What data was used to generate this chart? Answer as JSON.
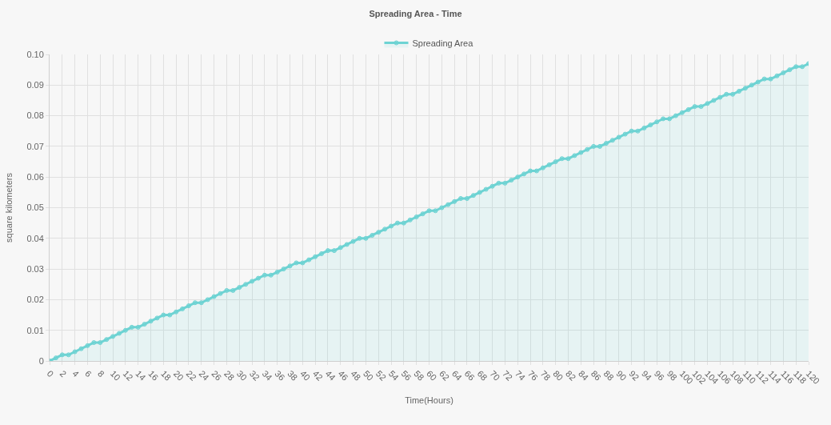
{
  "chart_data": {
    "type": "area",
    "title": "Spreading Area - Time",
    "xlabel": "Time(Hours)",
    "ylabel": "square kilometers",
    "x": [
      0,
      1,
      2,
      3,
      4,
      5,
      6,
      7,
      8,
      9,
      10,
      11,
      12,
      13,
      14,
      15,
      16,
      17,
      18,
      19,
      20,
      21,
      22,
      23,
      24,
      25,
      26,
      27,
      28,
      29,
      30,
      31,
      32,
      33,
      34,
      35,
      36,
      37,
      38,
      39,
      40,
      41,
      42,
      43,
      44,
      45,
      46,
      47,
      48,
      49,
      50,
      51,
      52,
      53,
      54,
      55,
      56,
      57,
      58,
      59,
      60,
      61,
      62,
      63,
      64,
      65,
      66,
      67,
      68,
      69,
      70,
      71,
      72,
      73,
      74,
      75,
      76,
      77,
      78,
      79,
      80,
      81,
      82,
      83,
      84,
      85,
      86,
      87,
      88,
      89,
      90,
      91,
      92,
      93,
      94,
      95,
      96,
      97,
      98,
      99,
      100,
      101,
      102,
      103,
      104,
      105,
      106,
      107,
      108,
      109,
      110,
      111,
      112,
      113,
      114,
      115,
      116,
      117,
      118,
      119,
      120
    ],
    "series": [
      {
        "name": "Spreading Area",
        "color": "#6dd3d3",
        "values": [
          0,
          0.001,
          0.002,
          0.002,
          0.003,
          0.004,
          0.005,
          0.006,
          0.006,
          0.007,
          0.008,
          0.009,
          0.01,
          0.011,
          0.011,
          0.012,
          0.013,
          0.014,
          0.015,
          0.015,
          0.016,
          0.017,
          0.018,
          0.019,
          0.019,
          0.02,
          0.021,
          0.022,
          0.023,
          0.023,
          0.024,
          0.025,
          0.026,
          0.027,
          0.028,
          0.028,
          0.029,
          0.03,
          0.031,
          0.032,
          0.032,
          0.033,
          0.034,
          0.035,
          0.036,
          0.036,
          0.037,
          0.038,
          0.039,
          0.04,
          0.04,
          0.041,
          0.042,
          0.043,
          0.044,
          0.045,
          0.045,
          0.046,
          0.047,
          0.048,
          0.049,
          0.049,
          0.05,
          0.051,
          0.052,
          0.053,
          0.053,
          0.054,
          0.055,
          0.056,
          0.057,
          0.058,
          0.058,
          0.059,
          0.06,
          0.061,
          0.062,
          0.062,
          0.063,
          0.064,
          0.065,
          0.066,
          0.066,
          0.067,
          0.068,
          0.069,
          0.07,
          0.07,
          0.071,
          0.072,
          0.073,
          0.074,
          0.075,
          0.075,
          0.076,
          0.077,
          0.078,
          0.079,
          0.079,
          0.08,
          0.081,
          0.082,
          0.083,
          0.083,
          0.084,
          0.085,
          0.086,
          0.087,
          0.087,
          0.088,
          0.089,
          0.09,
          0.091,
          0.092,
          0.092,
          0.093,
          0.094,
          0.095,
          0.096,
          0.096,
          0.097
        ]
      }
    ],
    "xlim": [
      0,
      120
    ],
    "xticks": [
      0,
      2,
      4,
      6,
      8,
      10,
      12,
      14,
      16,
      18,
      20,
      22,
      24,
      26,
      28,
      30,
      32,
      34,
      36,
      38,
      40,
      42,
      44,
      46,
      48,
      50,
      52,
      54,
      56,
      58,
      60,
      62,
      64,
      66,
      68,
      70,
      72,
      74,
      76,
      78,
      80,
      82,
      84,
      86,
      88,
      90,
      92,
      94,
      96,
      98,
      100,
      102,
      104,
      106,
      108,
      110,
      112,
      114,
      116,
      118,
      120
    ],
    "ylim": [
      0,
      0.1
    ],
    "yticks": [
      {
        "value": 0,
        "label": "0"
      },
      {
        "value": 0.01,
        "label": "0.01"
      },
      {
        "value": 0.02,
        "label": "0.02"
      },
      {
        "value": 0.03,
        "label": "0.03"
      },
      {
        "value": 0.04,
        "label": "0.04"
      },
      {
        "value": 0.05,
        "label": "0.05"
      },
      {
        "value": 0.06,
        "label": "0.06"
      },
      {
        "value": 0.07,
        "label": "0.07"
      },
      {
        "value": 0.08,
        "label": "0.08"
      },
      {
        "value": 0.09,
        "label": "0.09"
      },
      {
        "value": 0.1,
        "label": "0.10"
      }
    ],
    "grid": true,
    "legend": "top",
    "marker": "circle",
    "line_style": "solid"
  }
}
